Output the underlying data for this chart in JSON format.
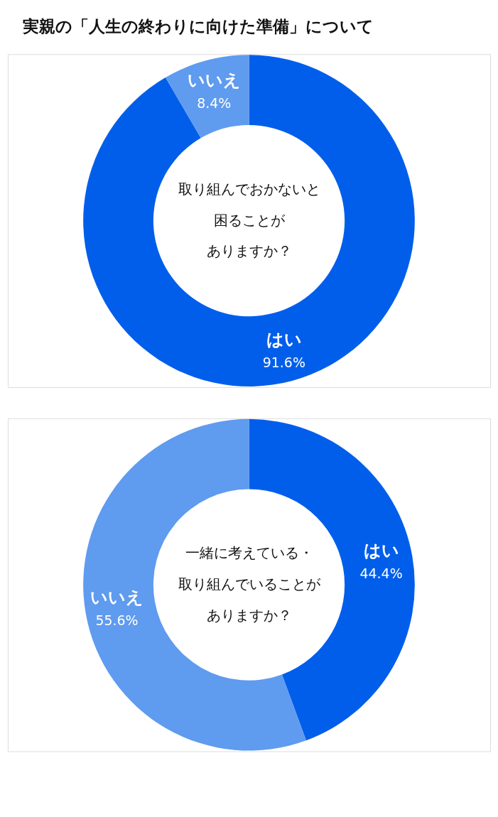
{
  "chart_data": [
    {
      "type": "donut",
      "title": "実親の「人生の終わりに向けた準備」について",
      "annotations": [
        "取り組んでおかないと",
        "困ることが",
        "ありますか？"
      ],
      "categories": [
        "はい",
        "いいえ"
      ],
      "values": [
        91.6,
        8.4
      ],
      "colors": [
        "#005eeb",
        "#5f9bef"
      ],
      "value_labels": [
        "91.6%",
        "8.4%"
      ]
    },
    {
      "type": "donut",
      "annotations": [
        "一緒に考えている・",
        "取り組んでいることが",
        "ありますか？"
      ],
      "categories": [
        "はい",
        "いいえ"
      ],
      "values": [
        44.4,
        55.6
      ],
      "colors": [
        "#005eeb",
        "#5f9bef"
      ],
      "value_labels": [
        "44.4%",
        "55.6%"
      ]
    }
  ]
}
